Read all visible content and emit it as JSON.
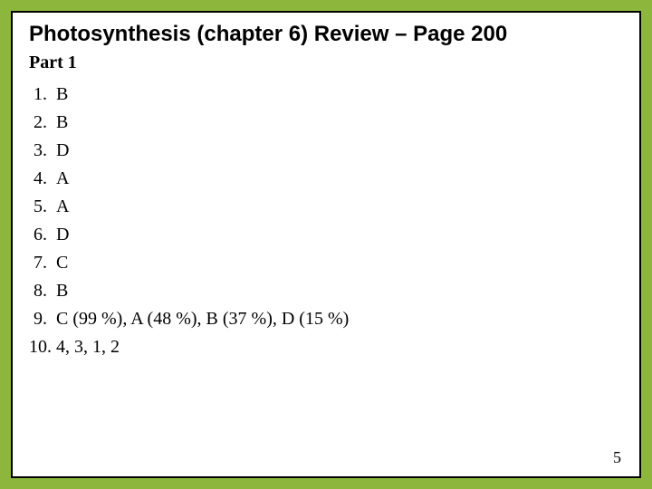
{
  "title": "Photosynthesis (chapter 6) Review – Page 200",
  "part_heading": "Part 1",
  "answers": [
    {
      "n": "1.",
      "a": "B"
    },
    {
      "n": "2.",
      "a": "B"
    },
    {
      "n": "3.",
      "a": "D"
    },
    {
      "n": "4.",
      "a": "A"
    },
    {
      "n": "5.",
      "a": "A"
    },
    {
      "n": "6.",
      "a": "D"
    },
    {
      "n": "7.",
      "a": "C"
    },
    {
      "n": "8.",
      "a": "B"
    },
    {
      "n": "9.",
      "a": "C (99 %), A (48 %), B (37 %), D (15 %)"
    },
    {
      "n": "10.",
      "a": "4, 3, 1, 2"
    }
  ],
  "page_number": "5",
  "colors": {
    "slide_border": "#8cb63c",
    "inner_border": "#000000",
    "background": "#ffffff",
    "text": "#000000"
  },
  "fonts": {
    "title_family": "Arial",
    "title_size_pt": 18,
    "body_family": "Times New Roman",
    "body_size_pt": 15
  }
}
